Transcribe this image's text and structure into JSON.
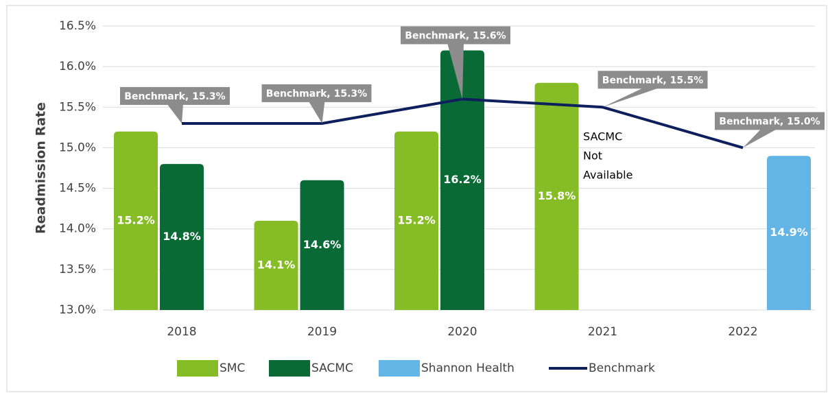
{
  "chart_data": {
    "type": "bar",
    "y_label": "Readmission Rate",
    "categories": [
      "2018",
      "2019",
      "2020",
      "2021",
      "2022"
    ],
    "series": [
      {
        "name": "SMC",
        "color": "#86bc25",
        "values": [
          15.2,
          14.1,
          15.2,
          15.8,
          null
        ],
        "value_labels": [
          "15.2%",
          "14.1%",
          "15.2%",
          "15.8%",
          null
        ]
      },
      {
        "name": "SACMC",
        "color": "#0a6a36",
        "values": [
          14.8,
          14.6,
          16.2,
          null,
          null
        ],
        "value_labels": [
          "14.8%",
          "14.6%",
          "16.2%",
          null,
          null
        ]
      },
      {
        "name": "Shannon Health",
        "color": "#62b5e5",
        "values": [
          null,
          null,
          null,
          null,
          14.9
        ],
        "value_labels": [
          null,
          null,
          null,
          null,
          "14.9%"
        ]
      },
      {
        "name": "Benchmark",
        "type": "line",
        "color": "#0d1f5c",
        "values": [
          15.3,
          15.3,
          15.6,
          15.5,
          15.0
        ],
        "value_labels": [
          "Benchmark, 15.3%",
          "Benchmark, 15.3%",
          "Benchmark, 15.6%",
          "Benchmark, 15.5%",
          "Benchmark, 15.0%"
        ]
      }
    ],
    "annotation": [
      "SACMC",
      "Not",
      "Available"
    ],
    "ylim": [
      13,
      16.5
    ],
    "yticks": [
      {
        "value": 13,
        "label": "13.0%"
      },
      {
        "value": 13.5,
        "label": "13.5%"
      },
      {
        "value": 14,
        "label": "14.0%"
      },
      {
        "value": 14.5,
        "label": "14.5%"
      },
      {
        "value": 15,
        "label": "15.0%"
      },
      {
        "value": 15.5,
        "label": "15.5%"
      },
      {
        "value": 16,
        "label": "16.0%"
      },
      {
        "value": 16.5,
        "label": "16.5%"
      }
    ],
    "grid": true,
    "legend": "bottom"
  }
}
